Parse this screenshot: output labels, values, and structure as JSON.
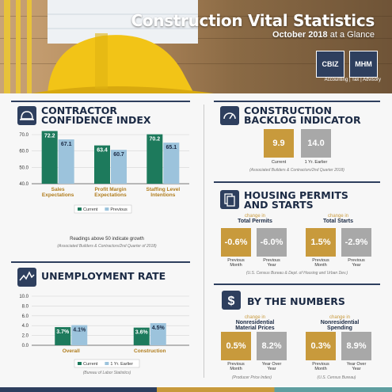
{
  "header": {
    "title": "Construction Vital Statistics",
    "subtitle_bold": "October 2018",
    "subtitle_rest": " at a Glance",
    "logo_left": "CBIZ",
    "logo_right": "MHM",
    "tagline": "Accounting | Tax | Advisory"
  },
  "colors": {
    "navy": "#2e3f5e",
    "green": "#1d7a5c",
    "light_blue": "#9cc3dc",
    "gold": "#c89a3c",
    "grey": "#a8a8a8"
  },
  "confidence": {
    "title_line1": "CONTRACTOR",
    "title_line2": "CONFIDENCE INDEX",
    "icon": "hard-hat-icon",
    "note": "Readings above 50 indicate growth",
    "source": "(Associated Builders & Contractors/2nd Quarter of 2018)"
  },
  "unemployment": {
    "title": "UNEMPLOYMENT RATE",
    "icon": "line-chart-icon",
    "source": "(Bureau of Labor Statistics)"
  },
  "backlog": {
    "title_line1": "CONSTRUCTION",
    "title_line2": "BACKLOG INDICATOR",
    "icon": "gauge-icon",
    "current_value": "9.9",
    "earlier_value": "14.0",
    "current_label": "Current",
    "earlier_label": "1 Yr. Earlier",
    "source": "(Associated Builders & Contractors/2nd Quarter 2018)"
  },
  "housing": {
    "title_line1": "HOUSING PERMITS",
    "title_line2": "AND STARTS",
    "icon": "documents-icon",
    "permits_change": "change in",
    "permits_label": "Total Permits",
    "starts_change": "change in",
    "starts_label": "Total Starts",
    "permits_month": "-0.6%",
    "permits_year": "-6.0%",
    "starts_month": "1.5%",
    "starts_year": "-2.9%",
    "prev_month_1": "Previous",
    "prev_month_2": "Month",
    "prev_year_1": "Previous",
    "prev_year_2": "Year",
    "source": "(U.S. Census Bureau & Dept. of Housing and Urban Dev.)"
  },
  "numbers": {
    "title": "BY THE NUMBERS",
    "icon": "dollar-icon",
    "left_change": "change in",
    "left_label_1": "Nonresidential",
    "left_label_2": "Material Prices",
    "right_change": "change in",
    "right_label_1": "Nonresidential",
    "right_label_2": "Spending",
    "left_month": "0.5%",
    "left_year": "8.2%",
    "right_month": "0.3%",
    "right_year": "8.9%",
    "prev_month_1": "Previous",
    "prev_month_2": "Month",
    "yoy_1": "Year Over",
    "yoy_2": "Year",
    "left_source": "(Producer Price Index)",
    "right_source": "(U.S. Census Bureau)"
  },
  "chart_data": [
    {
      "type": "bar",
      "categories": [
        "Sales Expectations",
        "Profit Margin Expectations",
        "Staffing Level Intentions"
      ],
      "category_lines": [
        [
          "Sales",
          "Expectations"
        ],
        [
          "Profit Margin",
          "Expectations"
        ],
        [
          "Staffing Level",
          "Intentions"
        ]
      ],
      "series": [
        {
          "name": "Current",
          "values": [
            72.2,
            63.4,
            70.2
          ],
          "labels": [
            "72.2",
            "63.4",
            "70.2"
          ],
          "color": "#1d7a5c"
        },
        {
          "name": "Previous",
          "values": [
            67.1,
            60.7,
            65.1
          ],
          "labels": [
            "67.1",
            "60.7",
            "65.1"
          ],
          "color": "#9cc3dc"
        }
      ],
      "ylim": [
        40,
        70
      ],
      "yticks": [
        "40.0",
        "50.0",
        "60.0",
        "70.0"
      ],
      "grid": true,
      "legend": "bottom"
    },
    {
      "type": "bar",
      "categories": [
        "Overall",
        "Construction"
      ],
      "series": [
        {
          "name": "Current",
          "values": [
            3.7,
            3.6
          ],
          "labels": [
            "3.7%",
            "3.6%"
          ],
          "color": "#1d7a5c"
        },
        {
          "name": "1 Yr. Earlier",
          "values": [
            4.1,
            4.5
          ],
          "labels": [
            "4.1%",
            "4.5%"
          ],
          "color": "#9cc3dc"
        }
      ],
      "ylim": [
        0,
        10
      ],
      "yticks": [
        "0.0",
        "2.0",
        "4.0",
        "6.0",
        "8.0",
        "10.0"
      ],
      "grid": true,
      "legend": "bottom"
    }
  ]
}
